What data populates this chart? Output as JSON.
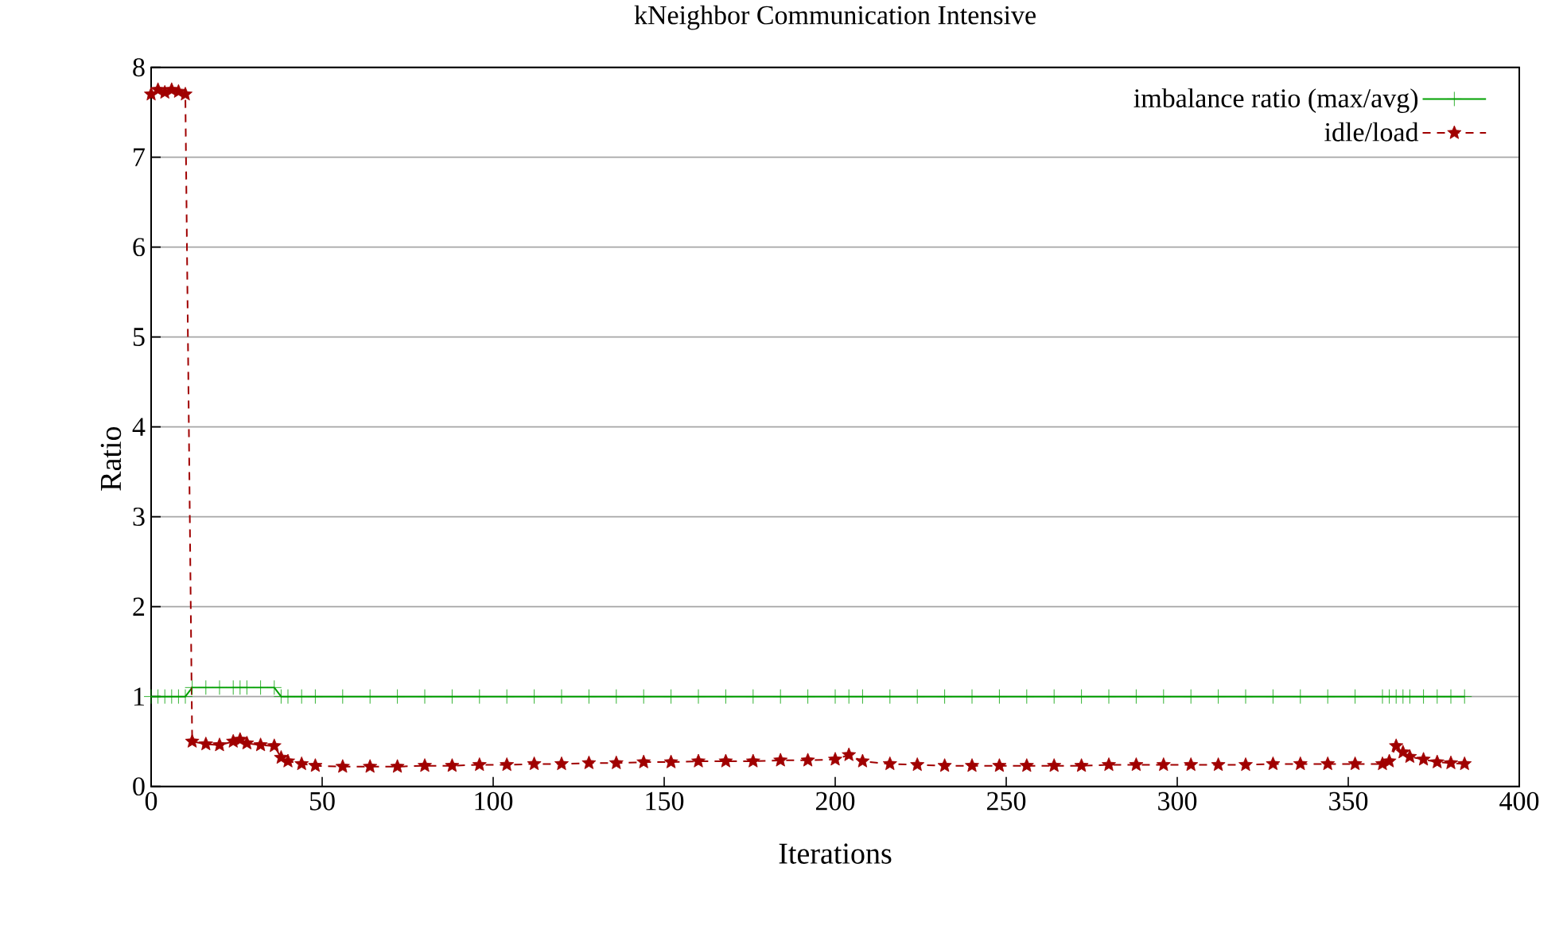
{
  "chart_data": {
    "type": "line",
    "title": "kNeighbor Communication Intensive",
    "xlabel": "Iterations",
    "ylabel": "Ratio",
    "x": [
      0,
      2,
      4,
      6,
      8,
      10,
      12,
      16,
      20,
      24,
      26,
      28,
      32,
      36,
      38,
      40,
      44,
      48,
      56,
      64,
      72,
      80,
      88,
      96,
      104,
      112,
      120,
      128,
      136,
      144,
      152,
      160,
      168,
      176,
      184,
      192,
      200,
      204,
      208,
      216,
      224,
      232,
      240,
      248,
      256,
      264,
      272,
      280,
      288,
      296,
      304,
      312,
      320,
      328,
      336,
      344,
      352,
      360,
      362,
      364,
      366,
      368,
      372,
      376,
      380,
      384
    ],
    "series": [
      {
        "name": "imbalance ratio (max/avg)",
        "color": "#00a000",
        "marker": "cross",
        "line_style": "solid",
        "values": [
          1.0,
          1.0,
          1.0,
          1.0,
          1.0,
          1.0,
          1.1,
          1.1,
          1.1,
          1.1,
          1.1,
          1.1,
          1.1,
          1.1,
          1.0,
          1.0,
          1.0,
          1.0,
          1.0,
          1.0,
          1.0,
          1.0,
          1.0,
          1.0,
          1.0,
          1.0,
          1.0,
          1.0,
          1.0,
          1.0,
          1.0,
          1.0,
          1.0,
          1.0,
          1.0,
          1.0,
          1.0,
          1.0,
          1.0,
          1.0,
          1.0,
          1.0,
          1.0,
          1.0,
          1.0,
          1.0,
          1.0,
          1.0,
          1.0,
          1.0,
          1.0,
          1.0,
          1.0,
          1.0,
          1.0,
          1.0,
          1.0,
          1.0,
          1.0,
          1.0,
          1.0,
          1.0,
          1.0,
          1.0,
          1.0,
          1.0
        ]
      },
      {
        "name": "idle/load",
        "color": "#a00000",
        "marker": "star",
        "line_style": "dashed",
        "values": [
          7.7,
          7.75,
          7.72,
          7.75,
          7.73,
          7.7,
          0.5,
          0.47,
          0.46,
          0.5,
          0.52,
          0.48,
          0.46,
          0.45,
          0.32,
          0.28,
          0.25,
          0.23,
          0.22,
          0.22,
          0.22,
          0.23,
          0.23,
          0.24,
          0.24,
          0.25,
          0.25,
          0.26,
          0.26,
          0.27,
          0.27,
          0.28,
          0.28,
          0.28,
          0.29,
          0.29,
          0.3,
          0.35,
          0.28,
          0.25,
          0.24,
          0.23,
          0.23,
          0.23,
          0.23,
          0.23,
          0.23,
          0.24,
          0.24,
          0.24,
          0.24,
          0.24,
          0.24,
          0.25,
          0.25,
          0.25,
          0.25,
          0.25,
          0.28,
          0.45,
          0.38,
          0.33,
          0.3,
          0.27,
          0.26,
          0.25
        ]
      }
    ],
    "xlim": [
      0,
      400
    ],
    "ylim": [
      0,
      8
    ],
    "xticks": [
      0,
      50,
      100,
      150,
      200,
      250,
      300,
      350,
      400
    ],
    "yticks": [
      0,
      1,
      2,
      3,
      4,
      5,
      6,
      7,
      8
    ],
    "grid": "y",
    "legend": "top right"
  }
}
